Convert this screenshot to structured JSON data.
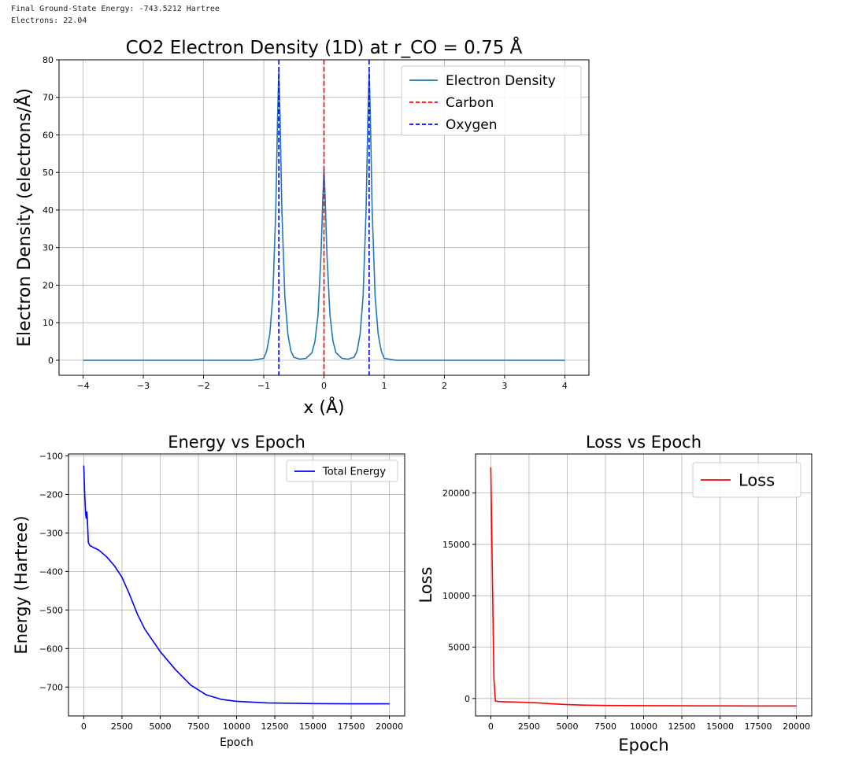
{
  "output": {
    "energy_line": "Final Ground-State Energy: -743.5212 Hartree",
    "electrons_line": "Electrons: 22.04"
  },
  "colors": {
    "density": "#1f77b4",
    "carbon": "#ff0000",
    "oxygen": "#0000ff",
    "energy": "#0000ff",
    "loss": "#ff0000",
    "grid": "#b0b0b0"
  },
  "chart_data": [
    {
      "id": "density",
      "type": "line",
      "title": "CO2 Electron Density (1D) at r_CO = 0.75 Å",
      "xlabel": "x (Å)",
      "ylabel": "Electron Density (electrons/Å)",
      "xlim": [
        -4.4,
        4.4
      ],
      "ylim": [
        -4,
        80
      ],
      "xticks": [
        -4,
        -3,
        -2,
        -1,
        0,
        1,
        2,
        3,
        4
      ],
      "xtick_labels": [
        "−4",
        "−3",
        "−2",
        "−1",
        "0",
        "1",
        "2",
        "3",
        "4"
      ],
      "yticks": [
        0,
        10,
        20,
        30,
        40,
        50,
        60,
        70,
        80
      ],
      "ytick_labels": [
        "0",
        "10",
        "20",
        "30",
        "40",
        "50",
        "60",
        "70",
        "80"
      ],
      "grid": true,
      "legend": "top-right",
      "series": [
        {
          "name": "Electron Density",
          "x": [
            -4,
            -1.2,
            -1.0,
            -0.95,
            -0.9,
            -0.85,
            -0.8,
            -0.77,
            -0.75,
            -0.73,
            -0.7,
            -0.65,
            -0.6,
            -0.55,
            -0.5,
            -0.4,
            -0.3,
            -0.2,
            -0.15,
            -0.1,
            -0.05,
            -0.02,
            0,
            0.02,
            0.05,
            0.1,
            0.15,
            0.2,
            0.3,
            0.4,
            0.5,
            0.55,
            0.6,
            0.65,
            0.7,
            0.73,
            0.75,
            0.77,
            0.8,
            0.85,
            0.9,
            0.95,
            1.0,
            1.2,
            4
          ],
          "y": [
            0,
            0,
            0.5,
            2.5,
            7,
            17,
            40,
            65,
            77,
            65,
            40,
            17,
            7,
            2.5,
            0.8,
            0.3,
            0.5,
            2,
            5,
            12,
            28,
            43,
            51,
            43,
            28,
            12,
            5,
            2,
            0.5,
            0.3,
            0.8,
            2.5,
            7,
            17,
            40,
            65,
            77,
            65,
            40,
            17,
            7,
            2.5,
            0.5,
            0,
            0
          ]
        }
      ],
      "vlines": [
        {
          "name": "Carbon",
          "x": 0,
          "style": "dashed",
          "color": "#ff0000"
        },
        {
          "name": "Oxygen",
          "x": -0.75,
          "style": "dashed",
          "color": "#0000ff"
        },
        {
          "name": "",
          "x": 0.75,
          "style": "dashed",
          "color": "#0000ff"
        }
      ]
    },
    {
      "id": "energy",
      "type": "line",
      "title": "Energy vs Epoch",
      "xlabel": "Epoch",
      "ylabel": "Energy (Hartree)",
      "xlim": [
        -1000,
        21000
      ],
      "ylim": [
        -775,
        -95
      ],
      "xticks": [
        0,
        2500,
        5000,
        7500,
        10000,
        12500,
        15000,
        17500,
        20000
      ],
      "xtick_labels": [
        "0",
        "2500",
        "5000",
        "7500",
        "10000",
        "12500",
        "15000",
        "17500",
        "20000"
      ],
      "yticks": [
        -100,
        -200,
        -300,
        -400,
        -500,
        -600,
        -700
      ],
      "ytick_labels": [
        "−100",
        "−200",
        "−300",
        "−400",
        "−500",
        "−600",
        "−700"
      ],
      "grid": true,
      "legend": "top-right",
      "series": [
        {
          "name": "Total Energy",
          "x": [
            0,
            60,
            120,
            160,
            200,
            230,
            260,
            300,
            400,
            600,
            1000,
            1500,
            2000,
            2500,
            3000,
            3500,
            4000,
            5000,
            6000,
            7000,
            8000,
            9000,
            10000,
            12000,
            15000,
            17500,
            20000
          ],
          "y": [
            -125,
            -200,
            -250,
            -262,
            -245,
            -262,
            -290,
            -325,
            -333,
            -337,
            -345,
            -362,
            -385,
            -415,
            -460,
            -510,
            -550,
            -608,
            -655,
            -695,
            -720,
            -732,
            -737,
            -741,
            -743,
            -743.5,
            -743.5
          ]
        }
      ]
    },
    {
      "id": "loss",
      "type": "line",
      "title": "Loss vs Epoch",
      "xlabel": "Epoch",
      "ylabel": "Loss",
      "xlim": [
        -1000,
        21000
      ],
      "ylim": [
        -1700,
        23800
      ],
      "xticks": [
        0,
        2500,
        5000,
        7500,
        10000,
        12500,
        15000,
        17500,
        20000
      ],
      "xtick_labels": [
        "0",
        "2500",
        "5000",
        "7500",
        "10000",
        "12500",
        "15000",
        "17500",
        "20000"
      ],
      "yticks": [
        0,
        5000,
        10000,
        15000,
        20000
      ],
      "ytick_labels": [
        "0",
        "5000",
        "10000",
        "15000",
        "20000"
      ],
      "grid": true,
      "legend": "top-right",
      "series": [
        {
          "name": "Loss",
          "x": [
            0,
            100,
            200,
            300,
            500,
            1000,
            2000,
            3000,
            4000,
            5000,
            6000,
            7500,
            10000,
            12500,
            15000,
            17500,
            20000
          ],
          "y": [
            22500,
            12000,
            2000,
            -250,
            -300,
            -330,
            -360,
            -420,
            -520,
            -600,
            -640,
            -680,
            -700,
            -710,
            -720,
            -725,
            -730
          ]
        }
      ]
    }
  ]
}
